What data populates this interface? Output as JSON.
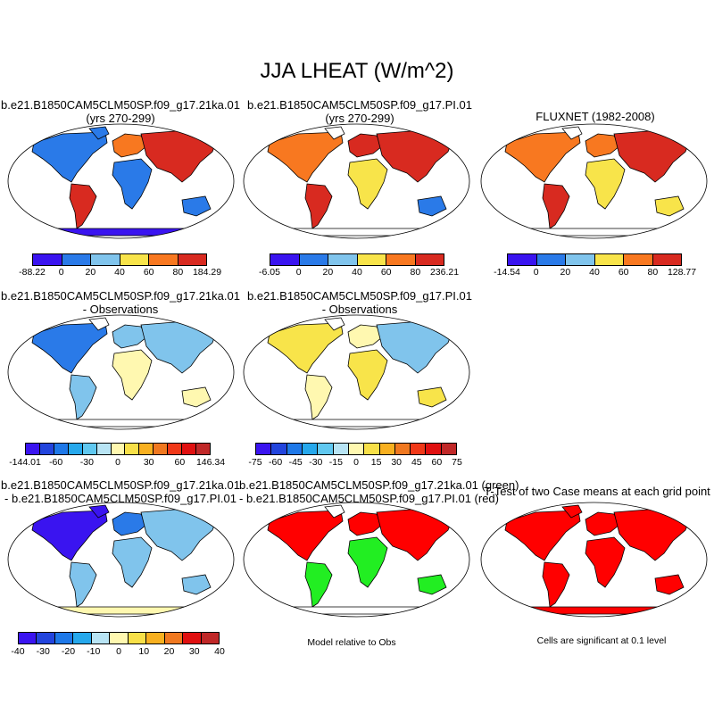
{
  "title": "JJA LHEAT (W/m^2)",
  "panels": {
    "p1": {
      "line1": "b.e21.B1850CAM5CLM50SP.f09_g17.21ka.01",
      "line2": "(yrs 270-299)"
    },
    "p2": {
      "line1": "b.e21.B1850CAM5CLM50SP.f09_g17.PI.01",
      "line2": "(yrs 270-299)"
    },
    "p3": {
      "line1": "FLUXNET (1982-2008)"
    },
    "p4": {
      "line1": "b.e21.B1850CAM5CLM50SP.f09_g17.21ka.01",
      "line2": "- Observations"
    },
    "p5": {
      "line1": "b.e21.B1850CAM5CLM50SP.f09_g17.PI.01",
      "line2": "- Observations"
    },
    "p7": {
      "line1": "b.e21.B1850CAM5CLM50SP.f09_g17.21ka.01",
      "line2": "- b.e21.B1850CAM5CLM50SP.f09_g17.PI.01"
    },
    "p8": {
      "line1": "b.e21.B1850CAM5CLM50SP.f09_g17.21ka.01 (green)",
      "line2": "- b.e21.B1850CAM5CLM50SP.f09_g17.PI.01 (red)"
    },
    "p9": {
      "line1": "T-Test of two Case means at each grid point"
    }
  },
  "colorbars": {
    "cb1": {
      "colors": [
        "#3a14f0",
        "#2a7ae8",
        "#80c4ec",
        "#f8e44a",
        "#f87820",
        "#d82a20"
      ],
      "labels": [
        "-88.22",
        "0",
        "20",
        "40",
        "60",
        "80",
        "184.29"
      ]
    },
    "cb2": {
      "colors": [
        "#3a14f0",
        "#2a7ae8",
        "#80c4ec",
        "#f8e44a",
        "#f87820",
        "#d82a20"
      ],
      "labels": [
        "-6.05",
        "0",
        "20",
        "40",
        "60",
        "80",
        "236.21"
      ]
    },
    "cb3": {
      "colors": [
        "#3a14f0",
        "#2a7ae8",
        "#80c4ec",
        "#f8e44a",
        "#f87820",
        "#d82a20"
      ],
      "labels": [
        "-14.54",
        "0",
        "20",
        "40",
        "60",
        "80",
        "128.77"
      ]
    },
    "cb4": {
      "colors": [
        "#3a14f0",
        "#2244dd",
        "#1e78e8",
        "#26a8ec",
        "#60c8f0",
        "#b8e4f4",
        "#fff8b0",
        "#f8e048",
        "#f8b020",
        "#f07820",
        "#f03818",
        "#e01010",
        "#c02828"
      ],
      "labels": [
        "-144.01",
        "-60",
        "-30",
        "0",
        "30",
        "60",
        "146.34"
      ]
    },
    "cb5": {
      "colors": [
        "#3a14f0",
        "#2244dd",
        "#1e78e8",
        "#26a8ec",
        "#60c8f0",
        "#b8e4f4",
        "#fff8b0",
        "#f8e048",
        "#f8b020",
        "#f07820",
        "#f03818",
        "#e01010",
        "#c02828"
      ],
      "labels": [
        "-75",
        "-60",
        "-45",
        "-30",
        "-15",
        "0",
        "15",
        "30",
        "45",
        "60",
        "75"
      ]
    },
    "cb7": {
      "colors": [
        "#3a14f0",
        "#2244dd",
        "#1e78e8",
        "#26a8ec",
        "#b8e4f4",
        "#fff8b0",
        "#f8e048",
        "#f8b020",
        "#f07820",
        "#e01010",
        "#c02828"
      ],
      "labels": [
        "-40",
        "-30",
        "-20",
        "-10",
        "0",
        "10",
        "20",
        "30",
        "40"
      ]
    }
  },
  "notes": {
    "model_relative": "Model relative to Obs",
    "significance": "Cells are significant at 0.1 level"
  },
  "map_colors": {
    "ocean": "#ffffff",
    "border": "#000000",
    "blue": "#2a7ae8",
    "deepblue": "#3a14f0",
    "lightblue": "#80c4ec",
    "yellow": "#f8e44a",
    "paleyellow": "#fff8b0",
    "orange": "#f87820",
    "red": "#d82a20",
    "green": "#22ee22",
    "sigred": "#ff0000"
  }
}
